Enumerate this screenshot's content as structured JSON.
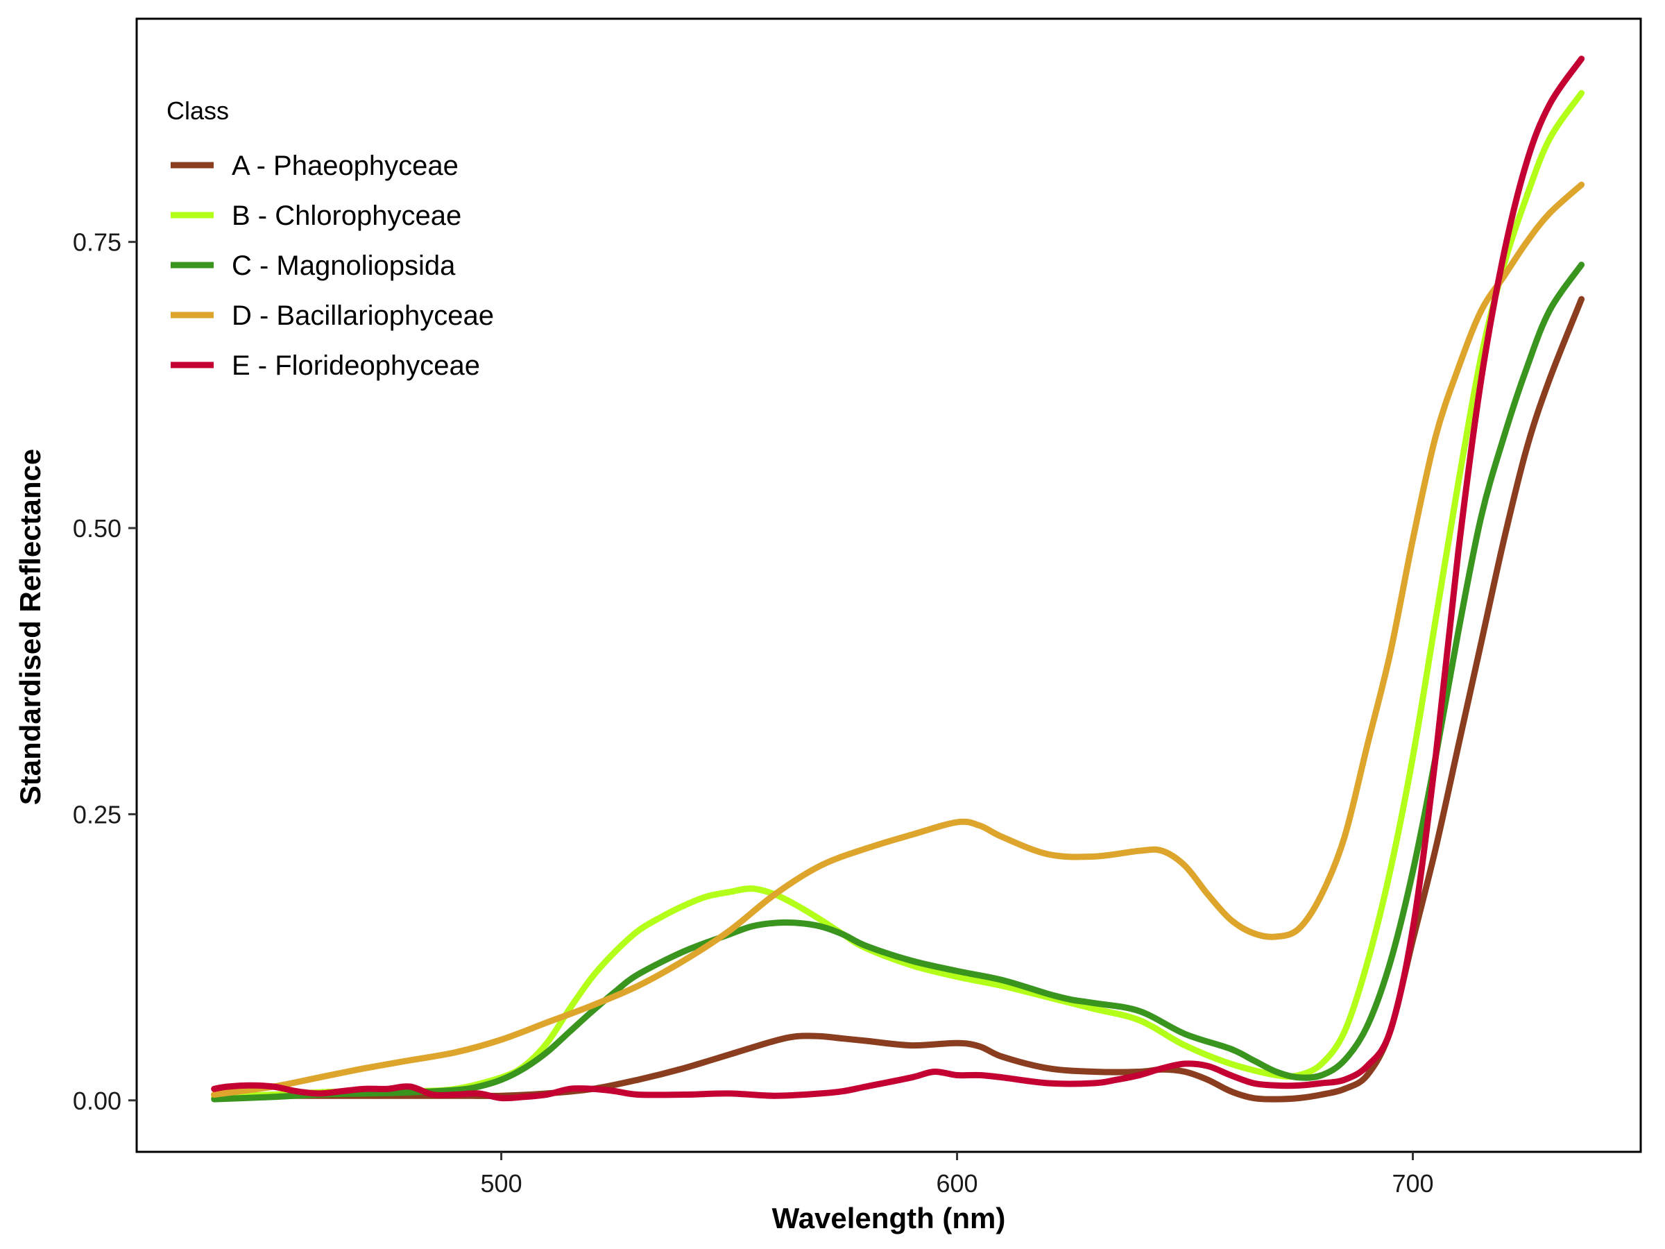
{
  "chart_data": {
    "type": "line",
    "xlabel": "Wavelength (nm)",
    "ylabel": "Standardised Reflectance",
    "xlim": [
      420,
      750
    ],
    "ylim": [
      -0.045,
      0.945
    ],
    "xticks": [
      500,
      600,
      700
    ],
    "yticks": [
      0.0,
      0.25,
      0.5,
      0.75
    ],
    "xtick_labels": [
      "500",
      "600",
      "700"
    ],
    "ytick_labels": [
      "0.00",
      "0.25",
      "0.50",
      "0.75"
    ],
    "grid": false,
    "legend": {
      "title": "Class",
      "position": "top-left"
    },
    "series": [
      {
        "name": "A - Phaeophyceae",
        "color": "#8B3E1F",
        "x": [
          437,
          450,
          460,
          470,
          480,
          490,
          500,
          510,
          520,
          530,
          540,
          550,
          560,
          565,
          570,
          575,
          580,
          590,
          600,
          605,
          610,
          620,
          630,
          640,
          645,
          650,
          655,
          660,
          665,
          670,
          675,
          680,
          685,
          690,
          695,
          700,
          705,
          710,
          715,
          720,
          725,
          730,
          737
        ],
        "y": [
          0.005,
          0.004,
          0.004,
          0.004,
          0.004,
          0.004,
          0.004,
          0.006,
          0.01,
          0.018,
          0.028,
          0.04,
          0.052,
          0.056,
          0.056,
          0.054,
          0.052,
          0.048,
          0.05,
          0.047,
          0.038,
          0.028,
          0.025,
          0.025,
          0.027,
          0.025,
          0.018,
          0.008,
          0.002,
          0.001,
          0.002,
          0.005,
          0.01,
          0.022,
          0.06,
          0.14,
          0.22,
          0.31,
          0.4,
          0.49,
          0.57,
          0.63,
          0.7
        ]
      },
      {
        "name": "B - Chlorophyceae",
        "color": "#B3FF1A",
        "x": [
          437,
          450,
          460,
          470,
          480,
          490,
          500,
          505,
          510,
          515,
          520,
          525,
          530,
          535,
          540,
          545,
          550,
          555,
          560,
          565,
          570,
          575,
          580,
          590,
          600,
          610,
          620,
          630,
          640,
          650,
          660,
          670,
          675,
          680,
          685,
          690,
          695,
          700,
          705,
          710,
          715,
          720,
          725,
          730,
          737
        ],
        "y": [
          0.003,
          0.005,
          0.007,
          0.008,
          0.008,
          0.01,
          0.02,
          0.03,
          0.05,
          0.08,
          0.108,
          0.13,
          0.148,
          0.16,
          0.17,
          0.178,
          0.182,
          0.185,
          0.18,
          0.17,
          0.158,
          0.145,
          0.133,
          0.118,
          0.108,
          0.1,
          0.09,
          0.08,
          0.07,
          0.048,
          0.032,
          0.022,
          0.022,
          0.032,
          0.06,
          0.12,
          0.2,
          0.3,
          0.42,
          0.54,
          0.65,
          0.73,
          0.79,
          0.84,
          0.88
        ]
      },
      {
        "name": "C - Magnoliopsida",
        "color": "#3A951F",
        "x": [
          437,
          450,
          460,
          470,
          480,
          490,
          495,
          500,
          505,
          510,
          515,
          520,
          525,
          530,
          540,
          550,
          555,
          560,
          565,
          570,
          575,
          580,
          590,
          600,
          610,
          620,
          625,
          630,
          640,
          650,
          660,
          665,
          670,
          675,
          680,
          685,
          690,
          695,
          700,
          705,
          710,
          715,
          720,
          725,
          730,
          737
        ],
        "y": [
          0.001,
          0.003,
          0.005,
          0.006,
          0.007,
          0.009,
          0.012,
          0.018,
          0.028,
          0.042,
          0.06,
          0.078,
          0.095,
          0.11,
          0.13,
          0.145,
          0.152,
          0.155,
          0.155,
          0.152,
          0.145,
          0.135,
          0.122,
          0.113,
          0.105,
          0.093,
          0.088,
          0.085,
          0.078,
          0.058,
          0.045,
          0.035,
          0.025,
          0.02,
          0.022,
          0.035,
          0.065,
          0.12,
          0.2,
          0.3,
          0.41,
          0.51,
          0.58,
          0.64,
          0.69,
          0.73
        ]
      },
      {
        "name": "D - Bacillariophyceae",
        "color": "#DDA52B",
        "x": [
          437,
          450,
          460,
          470,
          480,
          490,
          500,
          510,
          520,
          530,
          540,
          550,
          560,
          570,
          580,
          590,
          600,
          605,
          610,
          620,
          630,
          640,
          645,
          650,
          655,
          660,
          665,
          670,
          675,
          680,
          685,
          690,
          695,
          700,
          705,
          710,
          715,
          720,
          725,
          730,
          737
        ],
        "y": [
          0.005,
          0.012,
          0.02,
          0.028,
          0.035,
          0.042,
          0.053,
          0.068,
          0.083,
          0.1,
          0.122,
          0.148,
          0.18,
          0.205,
          0.22,
          0.232,
          0.243,
          0.24,
          0.23,
          0.215,
          0.213,
          0.218,
          0.218,
          0.205,
          0.18,
          0.158,
          0.146,
          0.143,
          0.15,
          0.18,
          0.23,
          0.31,
          0.39,
          0.49,
          0.58,
          0.64,
          0.69,
          0.72,
          0.75,
          0.775,
          0.8
        ]
      },
      {
        "name": "E - Florideophyceae",
        "color": "#C30031",
        "x": [
          437,
          440,
          445,
          450,
          455,
          460,
          465,
          470,
          475,
          480,
          485,
          490,
          495,
          500,
          505,
          510,
          515,
          520,
          525,
          530,
          540,
          550,
          560,
          570,
          575,
          580,
          590,
          595,
          600,
          605,
          610,
          620,
          630,
          635,
          640,
          645,
          650,
          655,
          660,
          665,
          670,
          675,
          680,
          685,
          690,
          695,
          700,
          705,
          710,
          715,
          720,
          725,
          730,
          737
        ],
        "y": [
          0.01,
          0.012,
          0.013,
          0.012,
          0.008,
          0.006,
          0.008,
          0.01,
          0.01,
          0.012,
          0.005,
          0.005,
          0.006,
          0.002,
          0.003,
          0.005,
          0.01,
          0.01,
          0.008,
          0.005,
          0.005,
          0.006,
          0.004,
          0.006,
          0.008,
          0.012,
          0.02,
          0.025,
          0.022,
          0.022,
          0.02,
          0.015,
          0.015,
          0.018,
          0.022,
          0.028,
          0.032,
          0.03,
          0.022,
          0.015,
          0.013,
          0.013,
          0.015,
          0.018,
          0.03,
          0.06,
          0.15,
          0.3,
          0.48,
          0.63,
          0.74,
          0.82,
          0.87,
          0.91
        ]
      }
    ]
  }
}
